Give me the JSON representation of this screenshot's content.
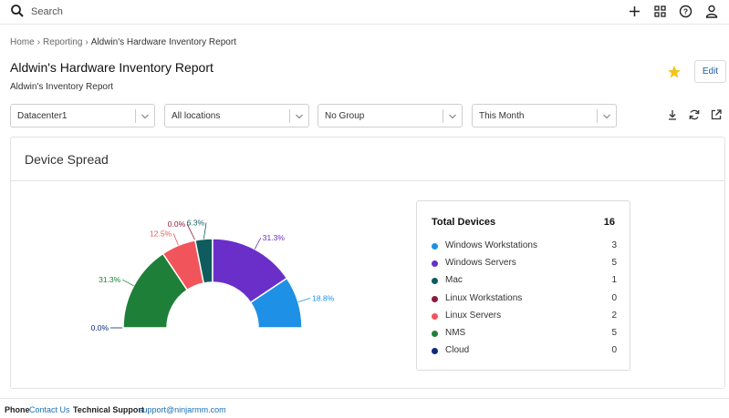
{
  "search": {
    "placeholder": "Search"
  },
  "topbar": {
    "icons": [
      "plus-icon",
      "grid-icon",
      "help-icon",
      "user-icon"
    ]
  },
  "breadcrumb": {
    "items": [
      "Home",
      "Reporting",
      "Aldwin's Hardware Inventory Report"
    ]
  },
  "page": {
    "title": "Aldwin's Hardware Inventory Report",
    "subtitle": "Aldwin's Inventory Report",
    "edit_label": "Edit"
  },
  "filters": [
    "Datacenter1",
    "All locations",
    "No Group",
    "This Month"
  ],
  "actions": [
    "download-icon",
    "refresh-icon",
    "external-link-icon"
  ],
  "panel": {
    "title": "Device Spread"
  },
  "legend": {
    "header": "Total Devices",
    "total": "16",
    "items": [
      {
        "name": "Windows Workstations",
        "count": "3",
        "color": "#1e90e6"
      },
      {
        "name": "Windows Servers",
        "count": "5",
        "color": "#6a2fc9"
      },
      {
        "name": "Mac",
        "count": "1",
        "color": "#0e5c5e"
      },
      {
        "name": "Linux Workstations",
        "count": "0",
        "color": "#8b1a3a"
      },
      {
        "name": "Linux Servers",
        "count": "2",
        "color": "#f2545b"
      },
      {
        "name": "NMS",
        "count": "5",
        "color": "#1e8038"
      },
      {
        "name": "Cloud",
        "count": "0",
        "color": "#0b2a7a"
      }
    ]
  },
  "chart_data": {
    "type": "pie",
    "categories": [
      "Cloud",
      "NMS",
      "Linux Servers",
      "Linux Workstations",
      "Mac",
      "Windows Servers",
      "Windows Workstations"
    ],
    "values": [
      0,
      5,
      2,
      0,
      1,
      5,
      3
    ],
    "percent_labels": [
      "0.0%",
      "31.3%",
      "12.5%",
      "0.0%",
      "6.3%",
      "31.3%",
      "18.8%"
    ],
    "colors": [
      "#0b2a7a",
      "#1e8038",
      "#f2545b",
      "#8b1a3a",
      "#0e5c5e",
      "#6a2fc9",
      "#1e90e6"
    ],
    "shape": "semi-donut"
  },
  "footer": {
    "phone_label": "Phone",
    "contact_label": "Contact Us",
    "support_label": "Technical Support",
    "support_email": "support@ninjarmm.com"
  }
}
